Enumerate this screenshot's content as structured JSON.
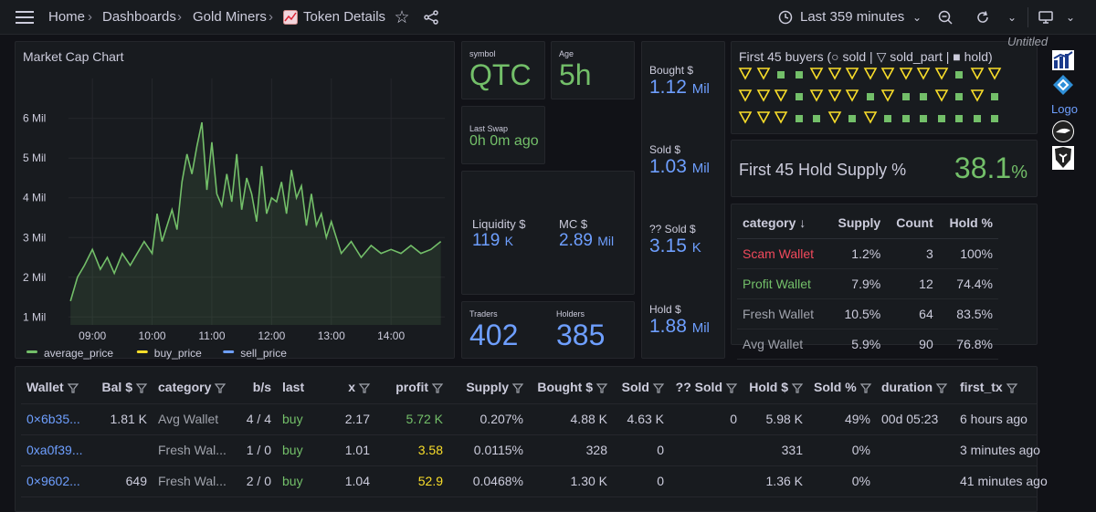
{
  "breadcrumb": {
    "home": "Home",
    "dashboards": "Dashboards",
    "folder": "Gold Miners",
    "page": "Token Details"
  },
  "toolbar": {
    "time_range": "Last 359 minutes"
  },
  "chart_panel": {
    "title": "Market Cap Chart"
  },
  "chart_data": {
    "type": "line",
    "title": "Market Cap Chart",
    "x_ticks": [
      "09:00",
      "10:00",
      "11:00",
      "12:00",
      "13:00",
      "14:00"
    ],
    "y_ticks": [
      "1 Mil",
      "2 Mil",
      "3 Mil",
      "4 Mil",
      "5 Mil",
      "6 Mil"
    ],
    "ylim": [
      1,
      6.2
    ],
    "xlim": [
      "08:36",
      "14:54"
    ],
    "series": [
      {
        "name": "average_price",
        "color": "#73bf69",
        "x": [
          "08:38",
          "08:45",
          "08:52",
          "09:00",
          "09:08",
          "09:15",
          "09:22",
          "09:30",
          "09:38",
          "09:45",
          "09:52",
          "10:00",
          "10:05",
          "10:10",
          "10:15",
          "10:20",
          "10:25",
          "10:30",
          "10:35",
          "10:40",
          "10:45",
          "10:50",
          "10:55",
          "11:00",
          "11:05",
          "11:10",
          "11:15",
          "11:20",
          "11:25",
          "11:30",
          "11:35",
          "11:40",
          "11:45",
          "11:50",
          "11:55",
          "12:00",
          "12:05",
          "12:10",
          "12:15",
          "12:20",
          "12:25",
          "12:30",
          "12:35",
          "12:40",
          "12:45",
          "12:50",
          "12:55",
          "13:00",
          "13:10",
          "13:20",
          "13:30",
          "13:40",
          "13:50",
          "14:00",
          "14:10",
          "14:20",
          "14:30",
          "14:40",
          "14:50"
        ],
        "y": [
          1.4,
          2.0,
          2.3,
          2.7,
          2.2,
          2.5,
          2.1,
          2.6,
          2.3,
          2.6,
          2.9,
          2.6,
          3.6,
          2.9,
          3.3,
          3.7,
          3.2,
          4.4,
          5.1,
          4.6,
          5.3,
          5.9,
          4.2,
          5.4,
          4.1,
          3.8,
          4.6,
          3.9,
          5.1,
          3.7,
          4.5,
          4.1,
          3.4,
          4.8,
          3.6,
          4.0,
          3.9,
          4.4,
          3.6,
          4.7,
          4.0,
          4.3,
          3.3,
          4.1,
          3.3,
          3.6,
          3.0,
          3.4,
          2.6,
          2.9,
          2.5,
          2.8,
          2.6,
          2.7,
          2.6,
          2.8,
          2.6,
          2.7,
          2.9
        ]
      },
      {
        "name": "buy_price",
        "color": "#fade2a",
        "x": [],
        "y": []
      },
      {
        "name": "sell_price",
        "color": "#6e9fff",
        "x": [],
        "y": []
      }
    ]
  },
  "stats": {
    "symbol_label": "symbol",
    "symbol": "QTC",
    "age_label": "Age",
    "age": "5h",
    "last_swap_label": "Last Swap",
    "last_swap": "0h 0m ago",
    "liquidity_label": "Liquidity $",
    "liquidity": "119",
    "liquidity_unit": "K",
    "mc_label": "MC $",
    "mc": "2.89",
    "mc_unit": "Mil",
    "traders_label": "Traders",
    "traders": "402",
    "holders_label": "Holders",
    "holders": "385",
    "bought_label": "Bought $",
    "bought": "1.12",
    "bought_unit": "Mil",
    "sold_label": "Sold $",
    "sold": "1.03",
    "sold_unit": "Mil",
    "unk_sold_label": "?? Sold $",
    "unk_sold": "3.15",
    "unk_sold_unit": "K",
    "hold_label": "Hold $",
    "hold": "1.88",
    "hold_unit": "Mil"
  },
  "buyers_panel": {
    "title": "First 45 buyers (○ sold | ▽ sold_part | ■ hold)",
    "rows": [
      [
        "tri",
        "tri",
        "sq",
        "sq",
        "tri",
        "tri",
        "tri",
        "tri",
        "tri",
        "tri",
        "tri",
        "tri",
        "sq",
        "tri",
        "tri"
      ],
      [
        "tri",
        "tri",
        "tri",
        "sq",
        "tri",
        "tri",
        "tri",
        "sq",
        "tri",
        "sq",
        "sq",
        "tri",
        "sq",
        "tri",
        "sq"
      ],
      [
        "tri",
        "tri",
        "tri",
        "sq",
        "sq",
        "tri",
        "sq",
        "tri",
        "sq",
        "sq",
        "sq",
        "sq",
        "sq",
        "sq",
        "sq"
      ]
    ]
  },
  "hold_supply": {
    "label": "First 45 Hold Supply %",
    "value": "38.1",
    "unit": "%"
  },
  "untitled": "Untitled",
  "logo_text": "Logo",
  "category_table": {
    "headers": [
      "category",
      "Supply",
      "Count",
      "Hold %"
    ],
    "rows": [
      {
        "category": "Scam Wallet",
        "supply": "1.2%",
        "count": "3",
        "hold": "100%",
        "color": "#f2495c"
      },
      {
        "category": "Profit Wallet",
        "supply": "7.9%",
        "count": "12",
        "hold": "74.4%",
        "color": "#73bf69"
      },
      {
        "category": "Fresh Wallet",
        "supply": "10.5%",
        "count": "64",
        "hold": "83.5%",
        "color": "#9fa2ab"
      },
      {
        "category": "Avg Wallet",
        "supply": "5.9%",
        "count": "90",
        "hold": "76.8%",
        "color": "#9fa2ab"
      }
    ]
  },
  "wallet_table": {
    "headers": [
      "Wallet",
      "Bal $",
      "category",
      "b/s",
      "last",
      "x",
      "profit",
      "Supply",
      "Bought $",
      "Sold",
      "?? Sold",
      "Hold $",
      "Sold %",
      "duration",
      "first_tx"
    ],
    "rows": [
      {
        "wallet": "0×6b35...",
        "bal": "1.81 K",
        "category": "Avg Wallet",
        "bs": "4 / 4",
        "last": "buy",
        "x": "2.17",
        "profit": "5.72 K",
        "profit_color": "#73bf69",
        "supply": "0.207%",
        "bought": "4.88 K",
        "sold": "4.63 K",
        "unk": "0",
        "hold": "5.98 K",
        "soldpct": "49%",
        "duration": "00d 05:23",
        "first": "6 hours ago"
      },
      {
        "wallet": "0xa0f39...",
        "bal": "",
        "category": "Fresh Wal...",
        "bs": "1 / 0",
        "last": "buy",
        "x": "1.01",
        "profit": "3.58",
        "profit_color": "#fade2a",
        "supply": "0.0115%",
        "bought": "328",
        "sold": "0",
        "unk": "",
        "hold": "331",
        "soldpct": "0%",
        "duration": "",
        "first": "3 minutes ago"
      },
      {
        "wallet": "0×9602...",
        "bal": "649",
        "category": "Fresh Wal...",
        "bs": "2 / 0",
        "last": "buy",
        "x": "1.04",
        "profit": "52.9",
        "profit_color": "#fade2a",
        "supply": "0.0468%",
        "bought": "1.30 K",
        "sold": "0",
        "unk": "",
        "hold": "1.36 K",
        "soldpct": "0%",
        "duration": "",
        "first": "41 minutes ago"
      }
    ]
  },
  "chart_legend": [
    "average_price",
    "buy_price",
    "sell_price"
  ]
}
